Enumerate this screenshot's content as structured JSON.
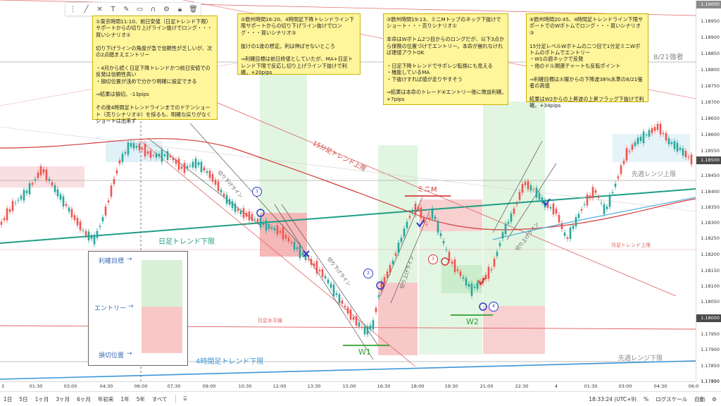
{
  "toolbar": {
    "icons": [
      "drag-handle-icon",
      "trendline-icon",
      "cross-icon",
      "text-icon",
      "brush-icon",
      "rectangle-icon",
      "magnet-icon",
      "settings-icon",
      "lock-icon",
      "trash-icon"
    ]
  },
  "price_axis": {
    "ticks": [
      "1.19000",
      "1.18950",
      "1.18900",
      "1.18850",
      "1.18800",
      "1.18750",
      "1.18700",
      "1.18650",
      "1.18600",
      "1.18550",
      "1.18450",
      "1.18400",
      "1.18350",
      "1.18300",
      "1.18250",
      "1.18200",
      "1.18150",
      "1.18100",
      "1.18050",
      "1.17950",
      "1.17900",
      "1.17850",
      "1.17800",
      "1.17750"
    ],
    "tag_top": "1.19000",
    "tag_mid": "1.18500",
    "tag_low": "1.18000"
  },
  "time_axis": {
    "ticks": [
      "3",
      "01:30",
      "03:00",
      "04:30",
      "06:00",
      "07:30",
      "09:00",
      "10:30",
      "12:00",
      "13:30",
      "15:00",
      "16:30",
      "18:00",
      "19:30",
      "21:00",
      "22:30",
      "4",
      "01:30",
      "03:00",
      "04:30",
      "06:0"
    ]
  },
  "bottom_bar": {
    "ranges": [
      "1日",
      "5日",
      "1ヶ月",
      "3ヶ月",
      "6ヶ月",
      "年初来",
      "1年",
      "5年",
      "すべて"
    ],
    "clock": "18:33:24 (UTC+9)",
    "percent": "%",
    "log": "ログスケール",
    "auto": "自動"
  },
  "notes": {
    "n1": "①東京時間11:10、前日安値（日足トレンド下限）サポートからの切り上げライン抜けでロング・・・買いシナリオ①\n\n切り下げラインの角度が急で信頼性が乏しいが、次の2点踏まえエントリー\n\n・4月から続く日足下降トレンドかつ前日安値での反発は信頼性高い\n・損切位置が浅めで分かり明確に設定できる\n\n⇒結果は損切。-13pips\n\nその後4時間足トレンドラインまでのドテンショート（売りシナリオ②）を採るも、明確な戻りがなくショートは出来ず",
    "n2": "②欧州時間16:20、4時間足下降トレンドライン下限サポートからの切り下げライン抜けでロング・・・買いシナリオ③\n\n抜けの1波の想定。利は伸ばせないところ\n\n⇒利確目標は前日終値としていたが、MA+日足トレンド下限で反応し切り上げライン下抜けで利確。+20pips",
    "n3": "③欧州時間19:13、ミニMトップのネック下抜けでショート・・・売りシナリオ①\n\n本命はWボトム2つ目からのロングだが、以下3点から保険の位置づけでエントリー。本命が崩れなければ建値アウトOK\n\n・日足下降トレンドでサポレジ転換にも見える\n・機能しているMA\n・下抜けすれば値が走りやすそう\n\n⇒結果は本命のトレード④エントリー後に微益利確。　+7pips",
    "n4": "④欧州時間20:45、4時間足トレンドライン下限サポートでのWボトムでロング・・・買いシナリオ③\n\n15分足レベルWボトムの二つ目で1分足ミニWボトムのボトムでエントリー\n・W1の週ネックで反発\n・他のドル関連チャートも反転ポイント\n\n⇒利確目標は火曜からの下降波38%水準の8/21強者の高値\n\n結果はW2からの上昇波の上昇フラッグ下抜けで利確。+34pips"
  },
  "labels": {
    "aug21": "8/21強者",
    "prev_week_range_high": "先週レンジ上限",
    "prev_week_range_low": "先週レンジ下限",
    "daily_trend_low": "日足トレンド下限",
    "fifteen_min_trend_high": "15分足トレンド上限",
    "four_hour_trend_low": "4時間足トレンド下限",
    "monthly_trend_high": "月足トレンド上限",
    "monthly_horizontal": "月足水平線",
    "mini_m": "ミニM",
    "w1": "W1",
    "w2": "W2",
    "cut_down_line_1": "切り下げライン",
    "cut_down_line_2": "切り下げライン",
    "cut_up_line_1": "切り上げライン",
    "cut_up_line_2": "切り上げライン",
    "badge_1": "1",
    "badge_2": "2",
    "badge_3": "3",
    "badge_4": "4"
  },
  "legend": {
    "take_profit": "利確目標",
    "entry": "エントリー",
    "stop_loss": "損切位置"
  },
  "colors": {
    "profit_green": "#c8ecc8",
    "loss_red": "#f4b0b0",
    "trend_teal": "#1e9e85",
    "trend_red": "#d23c3c",
    "trend_blue": "#3c96d6",
    "candle_up": "#26a69a",
    "candle_down": "#ef5350"
  }
}
